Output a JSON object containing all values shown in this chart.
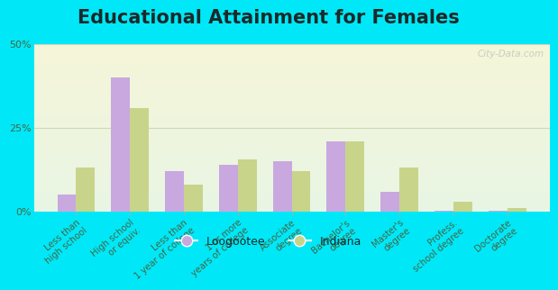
{
  "title": "Educational Attainment for Females",
  "categories": [
    "Less than\nhigh school",
    "High school\nor equiv.",
    "Less than\n1 year of college",
    "1 or more\nyears of college",
    "Associate\ndegree",
    "Bachelor's\ndegree",
    "Master's\ndegree",
    "Profess.\nschool degree",
    "Doctorate\ndegree"
  ],
  "loogootee": [
    5.0,
    40.0,
    12.0,
    14.0,
    15.0,
    21.0,
    6.0,
    0.3,
    0.3
  ],
  "indiana": [
    13.0,
    31.0,
    8.0,
    15.5,
    12.0,
    21.0,
    13.0,
    3.0,
    1.0
  ],
  "loogootee_color": "#c9a8e0",
  "indiana_color": "#c8d48a",
  "background_outer": "#00e8f8",
  "background_plot": "#eef5e8",
  "grid_color": "#d0d8b8",
  "title_fontsize": 15,
  "label_fontsize": 7.2,
  "tick_fontsize": 8,
  "ylim": [
    0,
    50
  ],
  "yticks": [
    0,
    25,
    50
  ],
  "ytick_labels": [
    "0%",
    "25%",
    "50%"
  ],
  "bar_width": 0.35,
  "legend_loogootee": "Loogootee",
  "legend_indiana": "Indiana"
}
